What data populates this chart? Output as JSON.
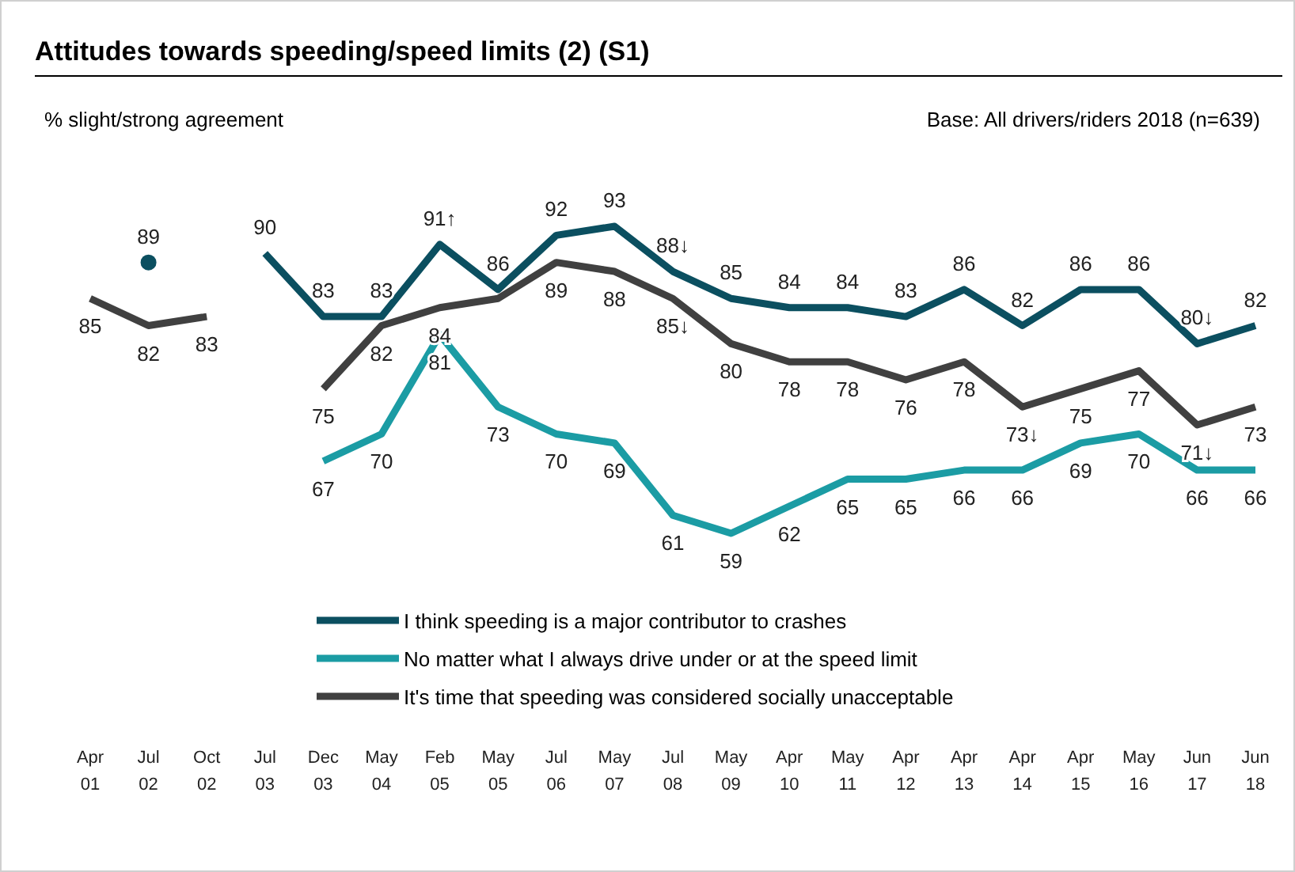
{
  "chart_data": {
    "type": "line",
    "title": "Attitudes towards speeding/speed limits (2) (S1)",
    "ylabel": "% slight/strong agreement",
    "annotations": [
      "Base: All drivers/riders 2018 (n=639)"
    ],
    "categories": [
      "Apr 01",
      "Jul 02",
      "Oct 02",
      "Jul 03",
      "Dec 03",
      "May 04",
      "Feb 05",
      "May 05",
      "Jul 06",
      "May 07",
      "Jul 08",
      "May 09",
      "Apr 10",
      "May 11",
      "Apr 12",
      "Apr 13",
      "Apr 14",
      "Apr 15",
      "May 16",
      "Jun 17",
      "Jun 18"
    ],
    "legend": "bottom",
    "grid": false,
    "series": [
      {
        "name": "I think speeding is a major contributor to crashes",
        "color": "#0b4f60",
        "values": [
          null,
          89,
          null,
          90,
          83,
          83,
          91,
          86,
          92,
          93,
          88,
          85,
          84,
          84,
          83,
          86,
          82,
          86,
          86,
          80,
          82
        ],
        "value_labels": [
          null,
          "89",
          null,
          "90",
          "83",
          "83",
          "91↑",
          "86",
          "92",
          "93",
          "88↓",
          "85",
          "84",
          "84",
          "83",
          "86",
          "82",
          "86",
          "86",
          "80↓",
          "82"
        ]
      },
      {
        "name": "No matter what I always drive under or at the speed limit",
        "color": "#1b9ca4",
        "values": [
          null,
          null,
          null,
          null,
          67,
          70,
          81,
          73,
          70,
          69,
          61,
          59,
          62,
          65,
          65,
          66,
          66,
          69,
          70,
          66,
          66
        ],
        "value_labels": [
          null,
          null,
          null,
          null,
          "67",
          "70",
          "81",
          "73",
          "70",
          "69",
          "61",
          "59",
          "62",
          "65",
          "65",
          "66",
          "66",
          "69",
          "70",
          "66",
          "66"
        ]
      },
      {
        "name": "It's time that speeding was considered socially unacceptable",
        "color": "#404040",
        "values": [
          85,
          82,
          83,
          null,
          75,
          82,
          84,
          85,
          89,
          88,
          85,
          80,
          78,
          78,
          76,
          78,
          73,
          75,
          77,
          71,
          73
        ],
        "value_labels": [
          "85",
          "82",
          "83",
          null,
          "75",
          "82",
          "84",
          null,
          "89",
          "88",
          "85↓",
          "80",
          "78",
          "78",
          "76",
          "78",
          "73↓",
          "75",
          "77",
          "71↓",
          "73"
        ]
      }
    ]
  }
}
